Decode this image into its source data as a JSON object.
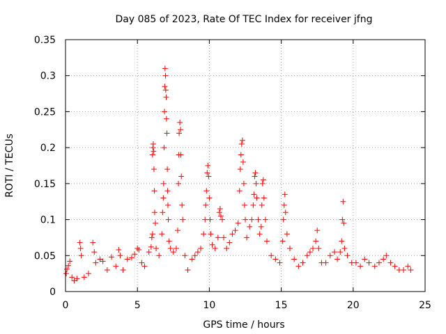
{
  "chart_data": {
    "type": "scatter",
    "title": "Day 085 of 2023, Rate Of TEC Index for receiver jfng",
    "xlabel": "GPS time / hours",
    "ylabel": "ROTI / TECUs",
    "xlim": [
      0,
      25
    ],
    "ylim": [
      0,
      0.35
    ],
    "xticks": [
      0,
      5,
      10,
      15,
      20,
      25
    ],
    "yticks": [
      0,
      0.05,
      0.1,
      0.15,
      0.2,
      0.25,
      0.3,
      0.35
    ],
    "grid": true,
    "marker": "plus",
    "color": "#ff0000",
    "series": [
      {
        "name": "ROTI",
        "points": [
          [
            0.05,
            0.025
          ],
          [
            0.1,
            0.031
          ],
          [
            0.2,
            0.036
          ],
          [
            0.3,
            0.042
          ],
          [
            0.45,
            0.02
          ],
          [
            0.6,
            0.015
          ],
          [
            0.8,
            0.018
          ],
          [
            1.0,
            0.068
          ],
          [
            1.05,
            0.06
          ],
          [
            1.1,
            0.05
          ],
          [
            1.3,
            0.02
          ],
          [
            1.6,
            0.025
          ],
          [
            1.9,
            0.068
          ],
          [
            2.0,
            0.055
          ],
          [
            2.1,
            0.04
          ],
          [
            2.4,
            0.045
          ],
          [
            2.6,
            0.042
          ],
          [
            2.9,
            0.03
          ],
          [
            3.2,
            0.048
          ],
          [
            3.5,
            0.035
          ],
          [
            3.7,
            0.058
          ],
          [
            3.8,
            0.05
          ],
          [
            4.0,
            0.03
          ],
          [
            4.3,
            0.045
          ],
          [
            4.6,
            0.047
          ],
          [
            4.8,
            0.052
          ],
          [
            5.0,
            0.06
          ],
          [
            5.1,
            0.058
          ],
          [
            5.3,
            0.04
          ],
          [
            5.5,
            0.035
          ],
          [
            5.8,
            0.055
          ],
          [
            5.95,
            0.062
          ],
          [
            6.0,
            0.075
          ],
          [
            6.05,
            0.08
          ],
          [
            6.05,
            0.19
          ],
          [
            6.08,
            0.2
          ],
          [
            6.1,
            0.205
          ],
          [
            6.12,
            0.195
          ],
          [
            6.15,
            0.17
          ],
          [
            6.18,
            0.14
          ],
          [
            6.2,
            0.11
          ],
          [
            6.25,
            0.095
          ],
          [
            6.3,
            0.06
          ],
          [
            6.5,
            0.05
          ],
          [
            6.7,
            0.08
          ],
          [
            6.75,
            0.11
          ],
          [
            6.8,
            0.13
          ],
          [
            6.82,
            0.15
          ],
          [
            6.85,
            0.2
          ],
          [
            6.88,
            0.25
          ],
          [
            6.9,
            0.285
          ],
          [
            6.92,
            0.31
          ],
          [
            6.95,
            0.3
          ],
          [
            6.97,
            0.28
          ],
          [
            7.0,
            0.27
          ],
          [
            7.02,
            0.24
          ],
          [
            7.05,
            0.22
          ],
          [
            7.08,
            0.17
          ],
          [
            7.1,
            0.14
          ],
          [
            7.12,
            0.12
          ],
          [
            7.15,
            0.1
          ],
          [
            7.2,
            0.07
          ],
          [
            7.3,
            0.06
          ],
          [
            7.5,
            0.055
          ],
          [
            7.7,
            0.06
          ],
          [
            7.8,
            0.085
          ],
          [
            7.85,
            0.15
          ],
          [
            7.88,
            0.19
          ],
          [
            7.9,
            0.22
          ],
          [
            7.95,
            0.235
          ],
          [
            8.0,
            0.225
          ],
          [
            8.02,
            0.19
          ],
          [
            8.05,
            0.16
          ],
          [
            8.1,
            0.12
          ],
          [
            8.15,
            0.1
          ],
          [
            8.3,
            0.05
          ],
          [
            8.5,
            0.03
          ],
          [
            8.8,
            0.045
          ],
          [
            9.0,
            0.05
          ],
          [
            9.2,
            0.055
          ],
          [
            9.4,
            0.06
          ],
          [
            9.6,
            0.08
          ],
          [
            9.7,
            0.1
          ],
          [
            9.75,
            0.12
          ],
          [
            9.8,
            0.14
          ],
          [
            9.85,
            0.165
          ],
          [
            9.9,
            0.175
          ],
          [
            9.95,
            0.16
          ],
          [
            10.0,
            0.13
          ],
          [
            10.05,
            0.1
          ],
          [
            10.1,
            0.08
          ],
          [
            10.2,
            0.065
          ],
          [
            10.4,
            0.06
          ],
          [
            10.6,
            0.075
          ],
          [
            10.7,
            0.11
          ],
          [
            10.75,
            0.115
          ],
          [
            10.8,
            0.105
          ],
          [
            10.9,
            0.1
          ],
          [
            11.0,
            0.075
          ],
          [
            11.2,
            0.06
          ],
          [
            11.4,
            0.068
          ],
          [
            11.6,
            0.08
          ],
          [
            11.8,
            0.085
          ],
          [
            12.0,
            0.095
          ],
          [
            12.1,
            0.14
          ],
          [
            12.15,
            0.17
          ],
          [
            12.2,
            0.19
          ],
          [
            12.25,
            0.205
          ],
          [
            12.3,
            0.21
          ],
          [
            12.35,
            0.18
          ],
          [
            12.4,
            0.15
          ],
          [
            12.45,
            0.12
          ],
          [
            12.5,
            0.1
          ],
          [
            12.6,
            0.075
          ],
          [
            12.8,
            0.09
          ],
          [
            12.95,
            0.1
          ],
          [
            13.05,
            0.12
          ],
          [
            13.1,
            0.135
          ],
          [
            13.15,
            0.16
          ],
          [
            13.2,
            0.165
          ],
          [
            13.25,
            0.15
          ],
          [
            13.3,
            0.13
          ],
          [
            13.4,
            0.1
          ],
          [
            13.5,
            0.08
          ],
          [
            13.6,
            0.09
          ],
          [
            13.65,
            0.12
          ],
          [
            13.7,
            0.15
          ],
          [
            13.75,
            0.155
          ],
          [
            13.8,
            0.13
          ],
          [
            13.9,
            0.1
          ],
          [
            14.0,
            0.07
          ],
          [
            14.3,
            0.05
          ],
          [
            14.6,
            0.045
          ],
          [
            14.9,
            0.04
          ],
          [
            15.1,
            0.07
          ],
          [
            15.15,
            0.1
          ],
          [
            15.2,
            0.12
          ],
          [
            15.25,
            0.135
          ],
          [
            15.3,
            0.11
          ],
          [
            15.4,
            0.08
          ],
          [
            15.6,
            0.06
          ],
          [
            15.9,
            0.045
          ],
          [
            16.2,
            0.035
          ],
          [
            16.5,
            0.04
          ],
          [
            16.8,
            0.05
          ],
          [
            17.0,
            0.055
          ],
          [
            17.2,
            0.06
          ],
          [
            17.4,
            0.07
          ],
          [
            17.5,
            0.085
          ],
          [
            17.6,
            0.06
          ],
          [
            17.8,
            0.04
          ],
          [
            18.1,
            0.04
          ],
          [
            18.4,
            0.05
          ],
          [
            18.7,
            0.055
          ],
          [
            18.9,
            0.045
          ],
          [
            19.1,
            0.055
          ],
          [
            19.2,
            0.07
          ],
          [
            19.25,
            0.1
          ],
          [
            19.3,
            0.125
          ],
          [
            19.35,
            0.095
          ],
          [
            19.4,
            0.06
          ],
          [
            19.6,
            0.05
          ],
          [
            19.9,
            0.04
          ],
          [
            20.2,
            0.04
          ],
          [
            20.5,
            0.035
          ],
          [
            20.8,
            0.045
          ],
          [
            21.1,
            0.04
          ],
          [
            21.5,
            0.035
          ],
          [
            21.8,
            0.04
          ],
          [
            22.1,
            0.045
          ],
          [
            22.3,
            0.05
          ],
          [
            22.6,
            0.04
          ],
          [
            22.9,
            0.035
          ],
          [
            23.2,
            0.03
          ],
          [
            23.5,
            0.03
          ],
          [
            23.8,
            0.035
          ],
          [
            24.0,
            0.03
          ]
        ]
      }
    ]
  }
}
